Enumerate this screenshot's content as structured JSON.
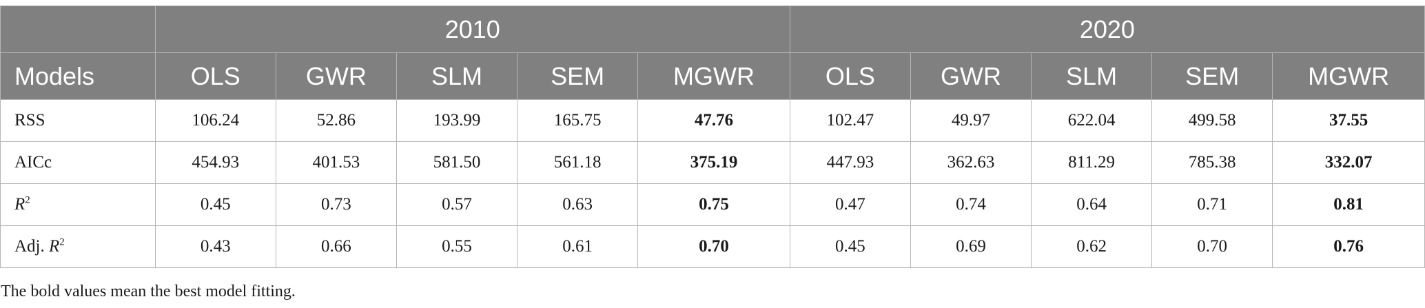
{
  "table": {
    "years": [
      "2010",
      "2020"
    ],
    "models_header": "Models",
    "models": [
      "OLS",
      "GWR",
      "SLM",
      "SEM",
      "MGWR",
      "OLS",
      "GWR",
      "SLM",
      "SEM",
      "MGWR"
    ],
    "rows": [
      {
        "label": "RSS",
        "values": [
          "106.24",
          "52.86",
          "193.99",
          "165.75",
          "47.76",
          "102.47",
          "49.97",
          "622.04",
          "499.58",
          "37.55"
        ],
        "bold": [
          false,
          false,
          false,
          false,
          true,
          false,
          false,
          false,
          false,
          true
        ]
      },
      {
        "label": "AICc",
        "values": [
          "454.93",
          "401.53",
          "581.50",
          "561.18",
          "375.19",
          "447.93",
          "362.63",
          "811.29",
          "785.38",
          "332.07"
        ],
        "bold": [
          false,
          false,
          false,
          false,
          true,
          false,
          false,
          false,
          false,
          true
        ]
      },
      {
        "label_main": "R",
        "label_sup": "2",
        "values": [
          "0.45",
          "0.73",
          "0.57",
          "0.63",
          "0.75",
          "0.47",
          "0.74",
          "0.64",
          "0.71",
          "0.81"
        ],
        "bold": [
          false,
          false,
          false,
          false,
          true,
          false,
          false,
          false,
          false,
          true
        ]
      },
      {
        "label_prefix": "Adj. ",
        "label_main": "R",
        "label_sup": "2",
        "values": [
          "0.43",
          "0.66",
          "0.55",
          "0.61",
          "0.70",
          "0.45",
          "0.69",
          "0.62",
          "0.70",
          "0.76"
        ],
        "bold": [
          false,
          false,
          false,
          false,
          true,
          false,
          false,
          false,
          false,
          true
        ]
      }
    ]
  },
  "footnote": "The bold values mean the best model fitting."
}
